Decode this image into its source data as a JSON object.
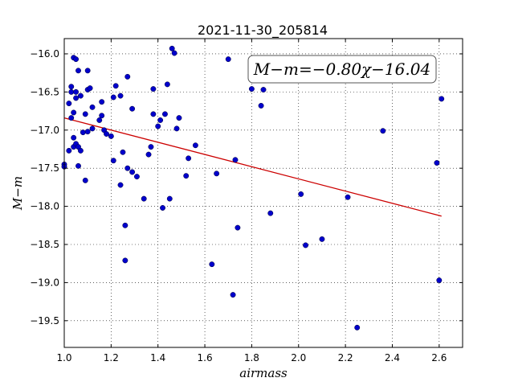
{
  "chart_data": {
    "type": "scatter",
    "title": "2021-11-30_205814",
    "xlabel": "airmass",
    "ylabel": "M−m",
    "xlim": [
      1.0,
      2.7
    ],
    "ylim": [
      -15.8,
      -19.85
    ],
    "y_inverted": true,
    "grid": true,
    "grid_style": "dotted",
    "xticks": [
      1.0,
      1.2,
      1.4,
      1.6,
      1.8,
      2.0,
      2.2,
      2.4,
      2.6
    ],
    "xtick_labels": [
      "1.0",
      "1.2",
      "1.4",
      "1.6",
      "1.8",
      "2.0",
      "2.2",
      "2.4",
      "2.6"
    ],
    "yticks": [
      -16.0,
      -16.5,
      -17.0,
      -17.5,
      -18.0,
      -18.5,
      -19.0,
      -19.5
    ],
    "ytick_labels": [
      "−16.0",
      "−16.5",
      "−17.0",
      "−17.5",
      "−18.0",
      "−18.5",
      "−19.0",
      "−19.5"
    ],
    "annotation": "M−m=−0.80χ−16.04",
    "colors": {
      "points": "#0000cc",
      "fit_line": "#cc0000"
    },
    "fit": {
      "slope": -0.8,
      "intercept": -16.04,
      "x_range": [
        1.0,
        2.61
      ]
    },
    "points": [
      [
        1.0,
        -17.45
      ],
      [
        1.0,
        -17.48
      ],
      [
        1.02,
        -17.27
      ],
      [
        1.02,
        -16.65
      ],
      [
        1.03,
        -16.84
      ],
      [
        1.03,
        -16.43
      ],
      [
        1.03,
        -16.5
      ],
      [
        1.04,
        -16.77
      ],
      [
        1.04,
        -16.05
      ],
      [
        1.05,
        -16.07
      ],
      [
        1.04,
        -17.1
      ],
      [
        1.04,
        -17.22
      ],
      [
        1.05,
        -17.18
      ],
      [
        1.05,
        -16.5
      ],
      [
        1.05,
        -16.58
      ],
      [
        1.06,
        -16.22
      ],
      [
        1.06,
        -17.22
      ],
      [
        1.06,
        -17.47
      ],
      [
        1.07,
        -16.55
      ],
      [
        1.07,
        -17.27
      ],
      [
        1.08,
        -17.03
      ],
      [
        1.09,
        -16.79
      ],
      [
        1.09,
        -17.66
      ],
      [
        1.1,
        -16.22
      ],
      [
        1.1,
        -16.47
      ],
      [
        1.1,
        -17.02
      ],
      [
        1.11,
        -16.45
      ],
      [
        1.12,
        -16.7
      ],
      [
        1.12,
        -16.98
      ],
      [
        1.15,
        -16.87
      ],
      [
        1.16,
        -16.63
      ],
      [
        1.16,
        -16.81
      ],
      [
        1.17,
        -17.0
      ],
      [
        1.18,
        -17.05
      ],
      [
        1.2,
        -17.08
      ],
      [
        1.21,
        -16.57
      ],
      [
        1.21,
        -17.4
      ],
      [
        1.22,
        -16.42
      ],
      [
        1.24,
        -16.55
      ],
      [
        1.24,
        -17.72
      ],
      [
        1.25,
        -17.29
      ],
      [
        1.26,
        -18.25
      ],
      [
        1.26,
        -18.71
      ],
      [
        1.27,
        -16.3
      ],
      [
        1.27,
        -17.5
      ],
      [
        1.29,
        -16.72
      ],
      [
        1.29,
        -17.55
      ],
      [
        1.31,
        -17.61
      ],
      [
        1.34,
        -17.9
      ],
      [
        1.36,
        -17.32
      ],
      [
        1.37,
        -17.22
      ],
      [
        1.38,
        -16.46
      ],
      [
        1.38,
        -16.79
      ],
      [
        1.4,
        -16.95
      ],
      [
        1.41,
        -16.87
      ],
      [
        1.42,
        -18.02
      ],
      [
        1.43,
        -16.79
      ],
      [
        1.44,
        -16.4
      ],
      [
        1.45,
        -17.9
      ],
      [
        1.46,
        -15.93
      ],
      [
        1.47,
        -15.99
      ],
      [
        1.48,
        -16.98
      ],
      [
        1.49,
        -16.84
      ],
      [
        1.52,
        -17.6
      ],
      [
        1.53,
        -17.37
      ],
      [
        1.56,
        -17.2
      ],
      [
        1.63,
        -18.76
      ],
      [
        1.65,
        -17.57
      ],
      [
        1.7,
        -16.07
      ],
      [
        1.72,
        -19.16
      ],
      [
        1.73,
        -17.39
      ],
      [
        1.74,
        -18.28
      ],
      [
        1.8,
        -16.46
      ],
      [
        1.84,
        -16.68
      ],
      [
        1.85,
        -16.47
      ],
      [
        1.88,
        -18.09
      ],
      [
        2.01,
        -17.84
      ],
      [
        2.03,
        -18.51
      ],
      [
        2.1,
        -18.43
      ],
      [
        2.21,
        -17.88
      ],
      [
        2.25,
        -19.59
      ],
      [
        2.36,
        -17.01
      ],
      [
        2.59,
        -17.43
      ],
      [
        2.6,
        -18.97
      ],
      [
        2.61,
        -16.59
      ]
    ]
  }
}
